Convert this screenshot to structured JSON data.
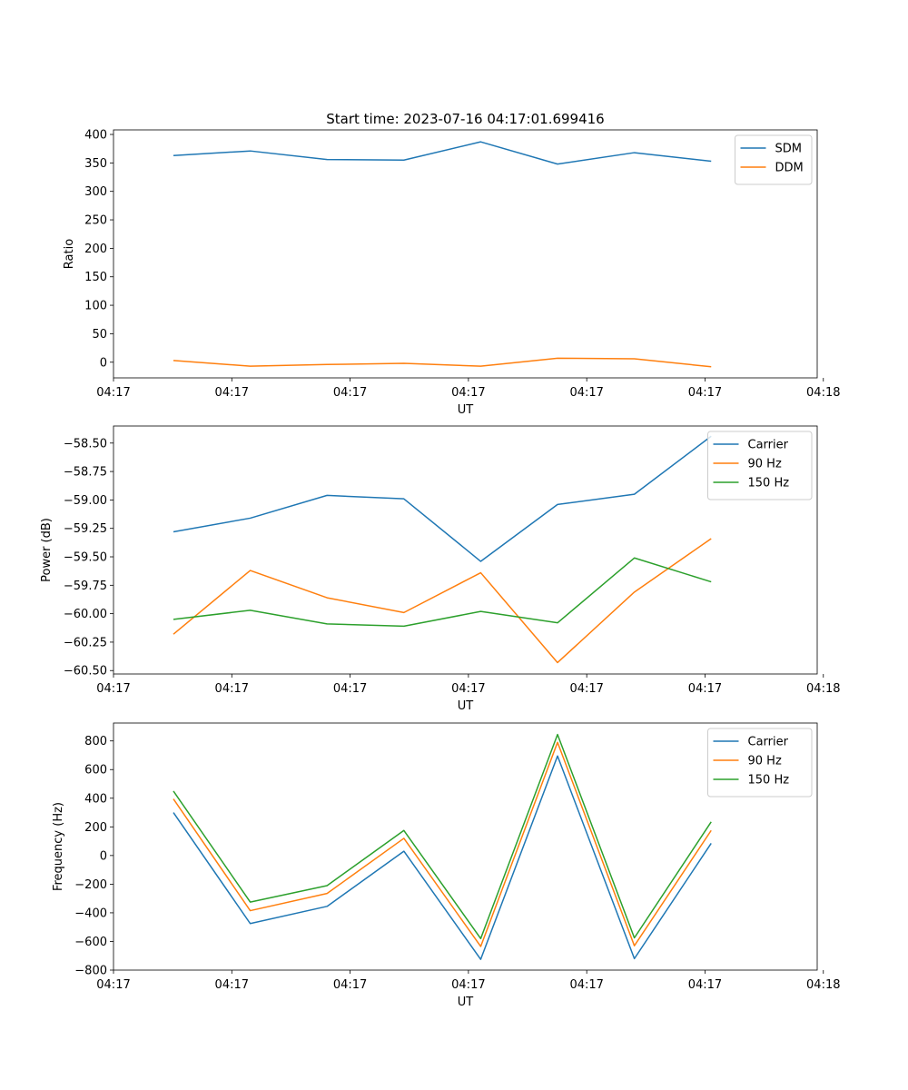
{
  "figure_title": "Start time: 2023-07-16 04:17:01.699416",
  "colors": {
    "blue": "#1f77b4",
    "orange": "#ff7f0e",
    "green": "#2ca02c"
  },
  "chart_data": [
    {
      "type": "line",
      "title": "Start time: 2023-07-16 04:17:01.699416",
      "xlabel": "UT",
      "ylabel": "Ratio",
      "x": [
        1,
        2,
        3,
        4,
        5,
        6,
        7,
        8
      ],
      "xlim": [
        0.22,
        9.38
      ],
      "x_ticks": [
        0.22,
        1.76,
        3.3,
        4.84,
        6.38,
        7.92,
        9.46
      ],
      "x_tick_labels": [
        "04:17",
        "04:17",
        "04:17",
        "04:17",
        "04:17",
        "04:17",
        "04:18"
      ],
      "ylim": [
        -27.5,
        408
      ],
      "y_ticks": [
        0,
        50,
        100,
        150,
        200,
        250,
        300,
        350,
        400
      ],
      "y_tick_labels": [
        "0",
        "50",
        "100",
        "150",
        "200",
        "250",
        "300",
        "350",
        "400"
      ],
      "legend_position": "top-right",
      "series": [
        {
          "name": "SDM",
          "color": "#1f77b4",
          "values": [
            363,
            371,
            356,
            355,
            387,
            348,
            368,
            353
          ]
        },
        {
          "name": "DDM",
          "color": "#ff7f0e",
          "values": [
            3,
            -7,
            -4,
            -2,
            -7,
            7,
            6,
            -8
          ]
        }
      ]
    },
    {
      "type": "line",
      "title": "",
      "xlabel": "UT",
      "ylabel": "Power (dB)",
      "x": [
        1,
        2,
        3,
        4,
        5,
        6,
        7,
        8
      ],
      "xlim": [
        0.22,
        9.38
      ],
      "x_ticks": [
        0.22,
        1.76,
        3.3,
        4.84,
        6.38,
        7.92,
        9.46
      ],
      "x_tick_labels": [
        "04:17",
        "04:17",
        "04:17",
        "04:17",
        "04:17",
        "04:17",
        "04:18"
      ],
      "ylim": [
        -60.53,
        -58.35
      ],
      "y_ticks": [
        -58.5,
        -58.75,
        -59.0,
        -59.25,
        -59.5,
        -59.75,
        -60.0,
        -60.25,
        -60.5
      ],
      "y_tick_labels": [
        "−58.50",
        "−58.75",
        "−59.00",
        "−59.25",
        "−59.50",
        "−59.75",
        "−60.00",
        "−60.25",
        "−60.50"
      ],
      "legend_position": "top-right",
      "series": [
        {
          "name": "Carrier",
          "color": "#1f77b4",
          "values": [
            -59.28,
            -59.16,
            -58.96,
            -58.99,
            -59.54,
            -59.04,
            -58.95,
            -58.44
          ]
        },
        {
          "name": "90 Hz",
          "color": "#ff7f0e",
          "values": [
            -60.18,
            -59.62,
            -59.86,
            -59.99,
            -59.64,
            -60.43,
            -59.81,
            -59.34
          ]
        },
        {
          "name": "150 Hz",
          "color": "#2ca02c",
          "values": [
            -60.05,
            -59.97,
            -60.09,
            -60.11,
            -59.98,
            -60.08,
            -59.51,
            -59.72
          ]
        }
      ]
    },
    {
      "type": "line",
      "title": "",
      "xlabel": "UT",
      "ylabel": "Frequency (Hz)",
      "x": [
        1,
        2,
        3,
        4,
        5,
        6,
        7,
        8
      ],
      "xlim": [
        0.22,
        9.38
      ],
      "x_ticks": [
        0.22,
        1.76,
        3.3,
        4.84,
        6.38,
        7.92,
        9.46
      ],
      "x_tick_labels": [
        "04:17",
        "04:17",
        "04:17",
        "04:17",
        "04:17",
        "04:17",
        "04:18"
      ],
      "ylim": [
        -800,
        925
      ],
      "y_ticks": [
        800,
        600,
        400,
        200,
        0,
        -200,
        -400,
        -600,
        -800
      ],
      "y_tick_labels": [
        "800",
        "600",
        "400",
        "200",
        "0",
        "−200",
        "−400",
        "−600",
        "−800"
      ],
      "legend_position": "top-right",
      "series": [
        {
          "name": "Carrier",
          "color": "#1f77b4",
          "values": [
            300,
            -475,
            -355,
            30,
            -725,
            695,
            -720,
            85
          ]
        },
        {
          "name": "90 Hz",
          "color": "#ff7f0e",
          "values": [
            395,
            -385,
            -265,
            120,
            -635,
            790,
            -630,
            175
          ]
        },
        {
          "name": "150 Hz",
          "color": "#2ca02c",
          "values": [
            450,
            -325,
            -210,
            175,
            -580,
            845,
            -575,
            235
          ]
        }
      ]
    }
  ]
}
